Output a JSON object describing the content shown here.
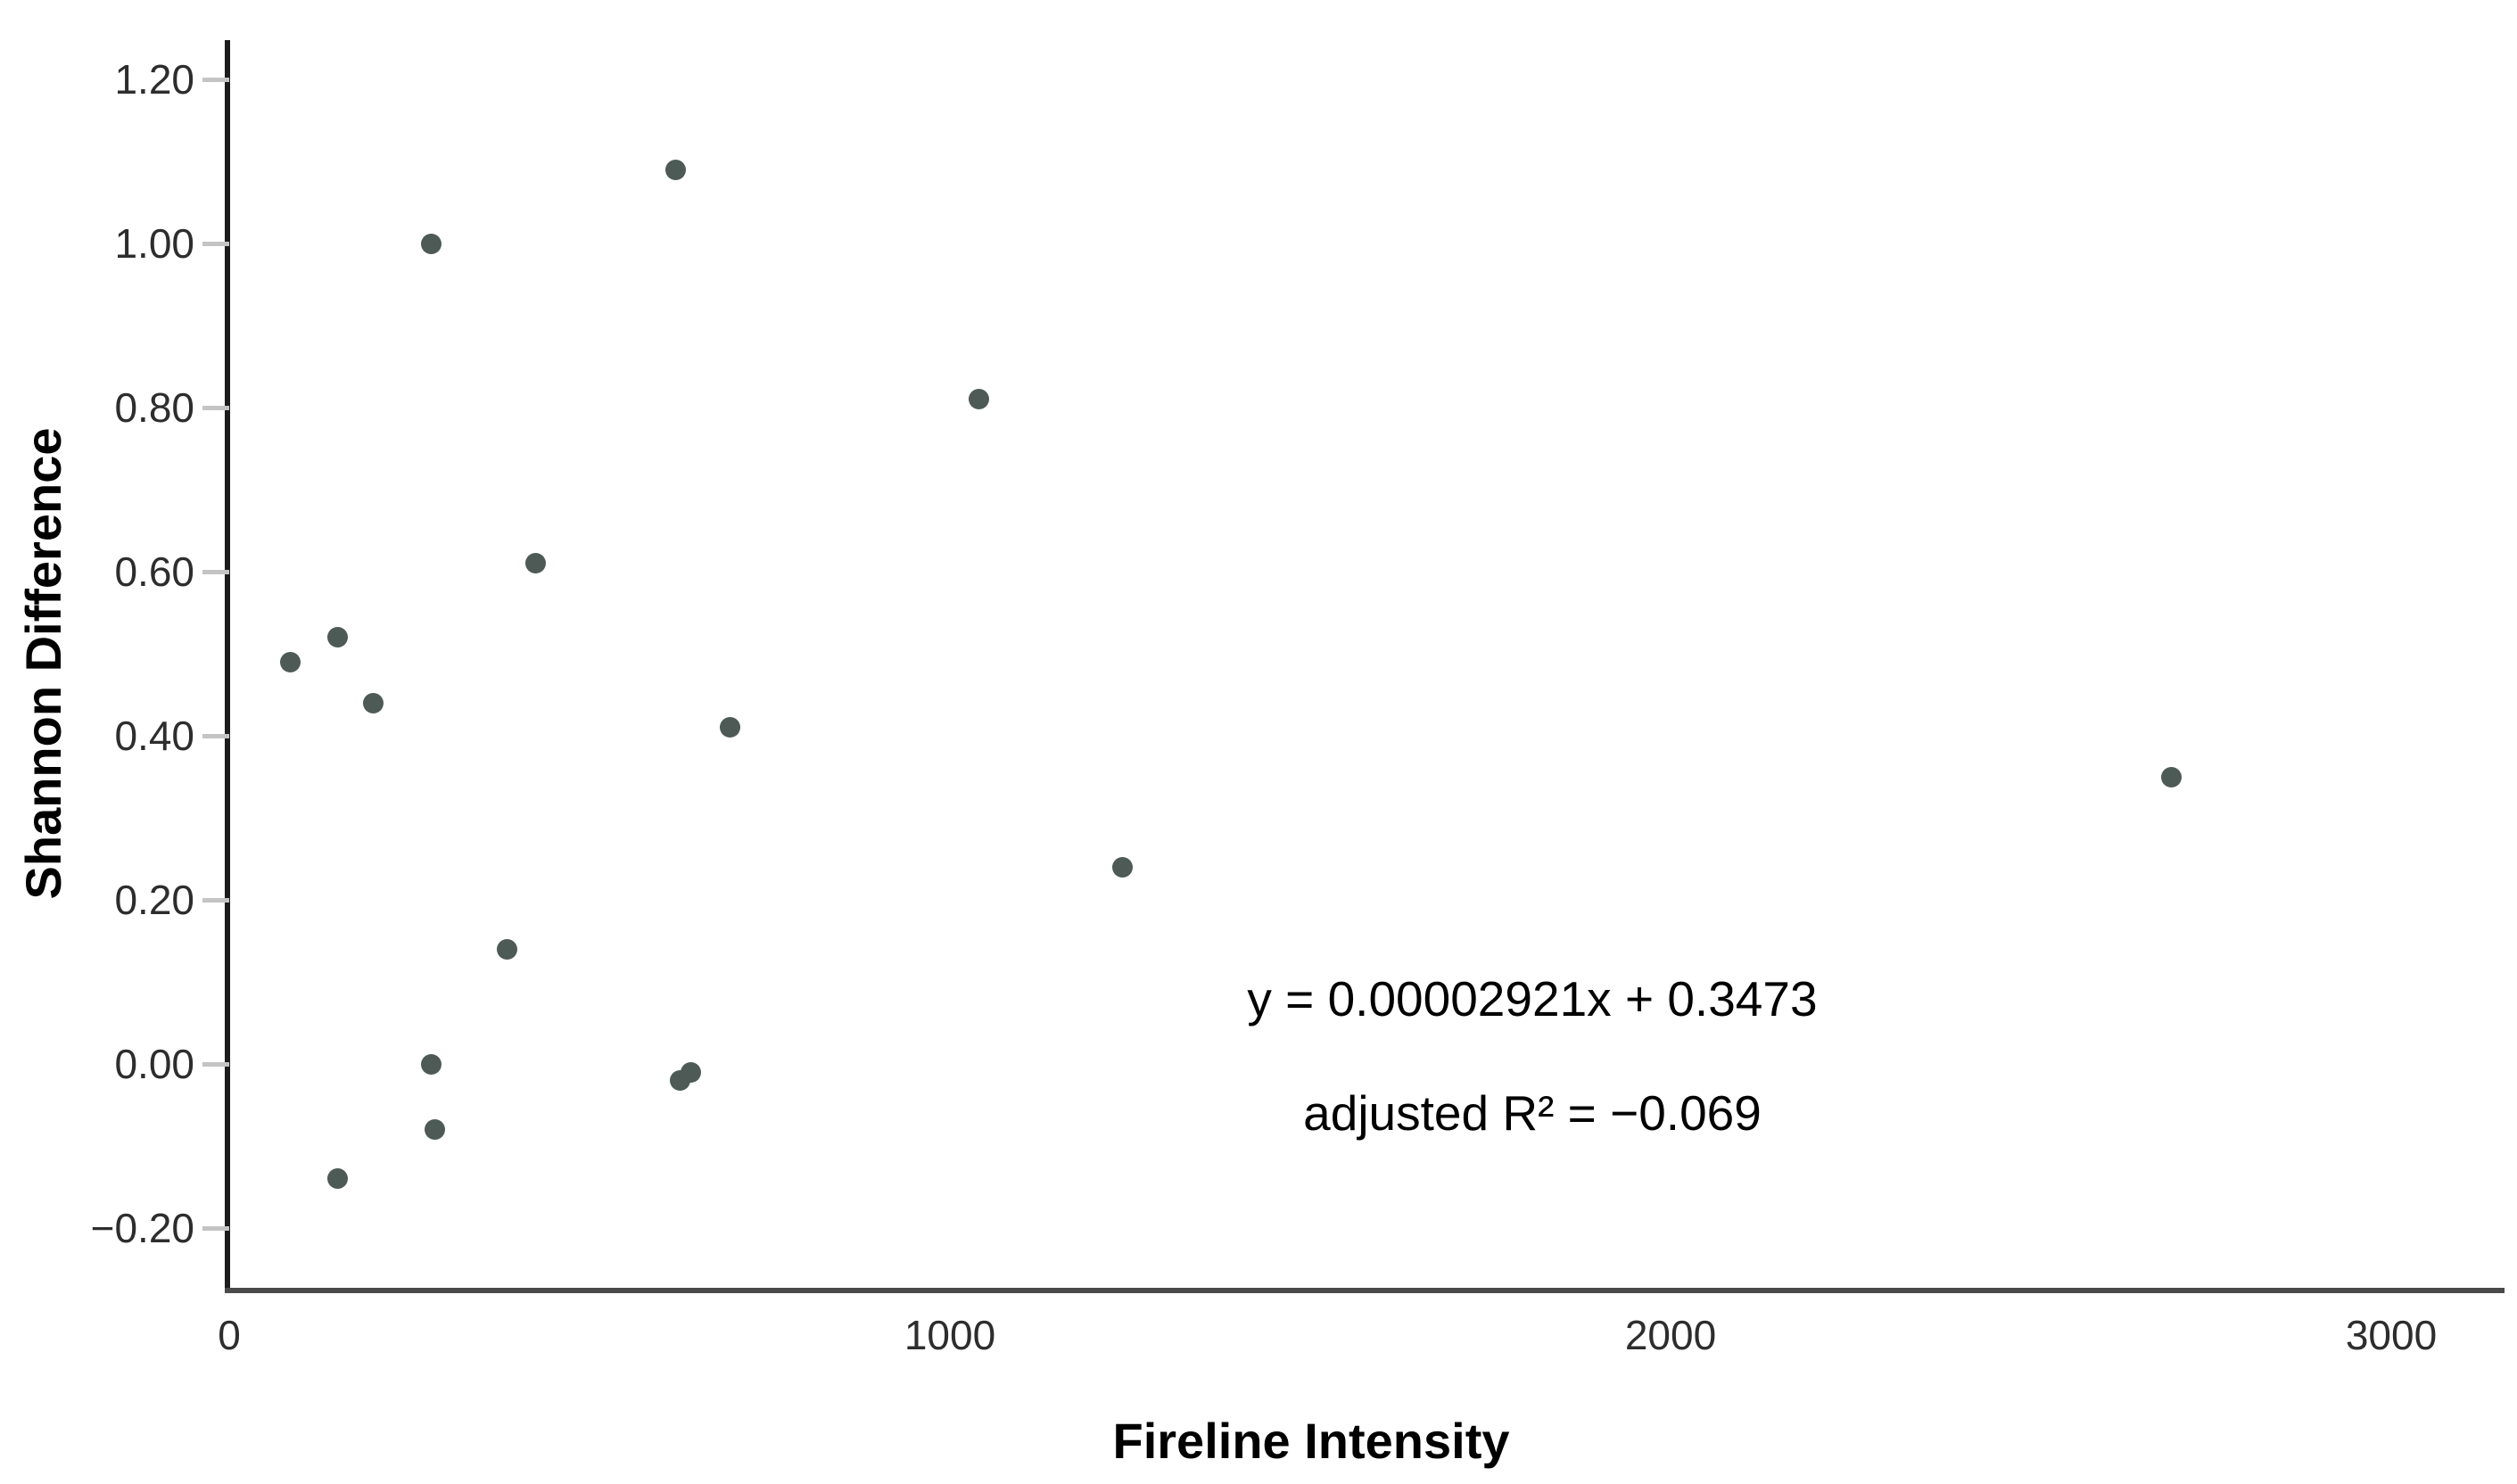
{
  "chart": {
    "colors": {
      "point": "#4d5a55",
      "y_axis": "#1c1c1c",
      "x_axis": "#4a4a4a",
      "tick_mark": "#c4c4c4",
      "tick_label": "#2d2d2d",
      "title_text": "#000000",
      "background": "#ffffff"
    }
  },
  "chart_data": {
    "type": "scatter",
    "title": "",
    "xlabel": "Fireline Intensity",
    "ylabel": "Shannon Difference",
    "xlim": [
      0,
      3160
    ],
    "ylim": [
      -0.28,
      1.25
    ],
    "grid": false,
    "legend_position": "none",
    "x_ticks": [
      {
        "label": "0",
        "value": 0
      },
      {
        "label": "1000",
        "value": 1000
      },
      {
        "label": "2000",
        "value": 2000
      },
      {
        "label": "3000",
        "value": 3000
      }
    ],
    "y_ticks": [
      {
        "label": "1.20",
        "value": 1.2
      },
      {
        "label": "1.00",
        "value": 1.0
      },
      {
        "label": "0.80",
        "value": 0.8
      },
      {
        "label": "0.60",
        "value": 0.6
      },
      {
        "label": "0.40",
        "value": 0.4
      },
      {
        "label": "0.20",
        "value": 0.2
      },
      {
        "label": "0.00",
        "value": 0.0
      },
      {
        "label": "−0.20",
        "value": -0.2
      }
    ],
    "points": [
      {
        "x": 85,
        "y": 0.49
      },
      {
        "x": 150,
        "y": 0.52
      },
      {
        "x": 200,
        "y": 0.44
      },
      {
        "x": 280,
        "y": 1.0
      },
      {
        "x": 425,
        "y": 0.61
      },
      {
        "x": 620,
        "y": 1.09
      },
      {
        "x": 695,
        "y": 0.41
      },
      {
        "x": 1040,
        "y": 0.81
      },
      {
        "x": 385,
        "y": 0.14
      },
      {
        "x": 1240,
        "y": 0.24
      },
      {
        "x": 2695,
        "y": 0.35
      },
      {
        "x": 280,
        "y": 0.0
      },
      {
        "x": 625,
        "y": -0.02
      },
      {
        "x": 640,
        "y": -0.01
      },
      {
        "x": 285,
        "y": -0.08
      },
      {
        "x": 150,
        "y": -0.14
      }
    ],
    "annotations": [
      {
        "text": "y = 0.00002921x + 0.3473"
      },
      {
        "text": "adjusted R² = −0.069"
      }
    ]
  }
}
